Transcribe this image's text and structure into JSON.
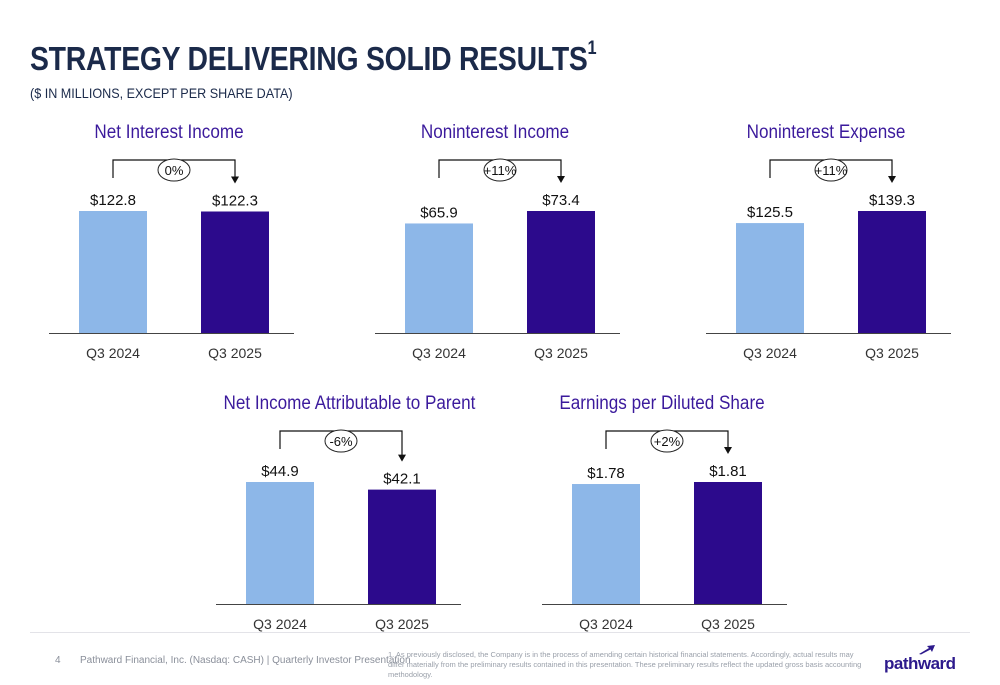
{
  "slide": {
    "title": "STRATEGY DELIVERING SOLID RESULTS",
    "title_superscript": "1",
    "subtitle": "($ IN MILLIONS, EXCEPT PER SHARE DATA)"
  },
  "colors": {
    "title": "#1b2a4a",
    "chart_title": "#3b1a9c",
    "prior_period_bar": "#8db7e8",
    "current_period_bar": "#2c0a8c"
  },
  "chart_data": [
    {
      "type": "bar",
      "title": "Net Interest Income",
      "categories": [
        "Q3 2024",
        "Q3 2025"
      ],
      "values": [
        122.8,
        122.3
      ],
      "value_labels": [
        "$122.8",
        "$122.3"
      ],
      "change_label": "0%"
    },
    {
      "type": "bar",
      "title": "Noninterest Income",
      "categories": [
        "Q3 2024",
        "Q3 2025"
      ],
      "values": [
        65.9,
        73.4
      ],
      "value_labels": [
        "$65.9",
        "$73.4"
      ],
      "change_label": "+11%"
    },
    {
      "type": "bar",
      "title": "Noninterest Expense",
      "categories": [
        "Q3 2024",
        "Q3 2025"
      ],
      "values": [
        125.5,
        139.3
      ],
      "value_labels": [
        "$125.5",
        "$139.3"
      ],
      "change_label": "+11%"
    },
    {
      "type": "bar",
      "title": "Net Income Attributable to Parent",
      "categories": [
        "Q3 2024",
        "Q3 2025"
      ],
      "values": [
        44.9,
        42.1
      ],
      "value_labels": [
        "$44.9",
        "$42.1"
      ],
      "change_label": "-6%"
    },
    {
      "type": "bar",
      "title": "Earnings per Diluted Share",
      "categories": [
        "Q3 2024",
        "Q3 2025"
      ],
      "values": [
        1.78,
        1.81
      ],
      "value_labels": [
        "$1.78",
        "$1.81"
      ],
      "change_label": "+2%"
    }
  ],
  "footer": {
    "page_number": "4",
    "company": "Pathward Financial, Inc. (Nasdaq: CASH) | Quarterly Investor Presentation",
    "footnote": "1. As previously disclosed, the Company is in the process of amending certain historical financial statements. Accordingly, actual results may differ materially from the preliminary results contained in this presentation. These preliminary results reflect the updated gross basis accounting methodology.",
    "logo_text": "pathward"
  }
}
